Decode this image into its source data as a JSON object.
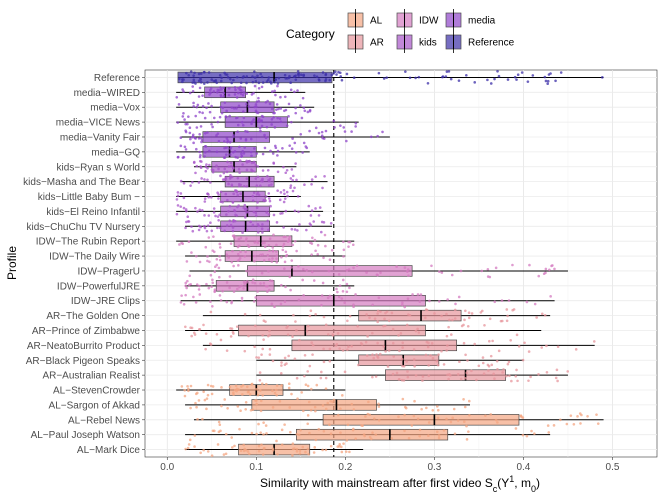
{
  "chart_data": {
    "type": "boxplot",
    "xlabel": "Similarity with mainstream after first video S",
    "xlabel_sub": "c",
    "xlabel_rest": "(Y",
    "xlabel_sup": "1",
    "xlabel_end": ", m",
    "xlabel_sub2": "0",
    "xlabel_close": ")",
    "ylabel": "Profile",
    "xlim": [
      -0.025,
      0.55
    ],
    "xticks": [
      0.0,
      0.1,
      0.2,
      0.3,
      0.4,
      0.5
    ],
    "xtick_labels": [
      "0.0",
      "0.1",
      "0.2",
      "0.3",
      "0.4",
      "0.5"
    ],
    "reference_line": 0.187,
    "legend": {
      "title": "Category",
      "entries": [
        {
          "label": "AL",
          "color": "#f4a582"
        },
        {
          "label": "AR",
          "color": "#e7969c"
        },
        {
          "label": "IDW",
          "color": "#d47bc0"
        },
        {
          "label": "kids",
          "color": "#a855c9"
        },
        {
          "label": "media",
          "color": "#8e44c9"
        },
        {
          "label": "Reference",
          "color": "#3c2fa8"
        }
      ]
    },
    "categories_top_to_bottom": [
      {
        "profile": "Reference",
        "category": "Reference",
        "min": 0.012,
        "q1": 0.012,
        "median": 0.12,
        "q3": 0.185,
        "max": 0.49
      },
      {
        "profile": "media−WIRED",
        "category": "media",
        "min": 0.01,
        "q1": 0.042,
        "median": 0.065,
        "q3": 0.088,
        "max": 0.155
      },
      {
        "profile": "media−Vox",
        "category": "media",
        "min": 0.01,
        "q1": 0.06,
        "median": 0.09,
        "q3": 0.12,
        "max": 0.165
      },
      {
        "profile": "media−VICE News",
        "category": "media",
        "min": 0.01,
        "q1": 0.065,
        "median": 0.1,
        "q3": 0.135,
        "max": 0.215
      },
      {
        "profile": "media−Vanity Fair",
        "category": "media",
        "min": 0.015,
        "q1": 0.04,
        "median": 0.075,
        "q3": 0.115,
        "max": 0.25
      },
      {
        "profile": "media−GQ",
        "category": "media",
        "min": 0.01,
        "q1": 0.04,
        "median": 0.07,
        "q3": 0.1,
        "max": 0.16
      },
      {
        "profile": "kids−Ryan s World",
        "category": "kids",
        "min": 0.03,
        "q1": 0.05,
        "median": 0.075,
        "q3": 0.1,
        "max": 0.145
      },
      {
        "profile": "kids−Masha and The Bear",
        "category": "kids",
        "min": 0.015,
        "q1": 0.065,
        "median": 0.092,
        "q3": 0.12,
        "max": 0.18
      },
      {
        "profile": "kids−Little Baby Bum −",
        "category": "kids",
        "min": 0.01,
        "q1": 0.06,
        "median": 0.085,
        "q3": 0.11,
        "max": 0.15
      },
      {
        "profile": "kids−El Reino Infantil",
        "category": "kids",
        "min": 0.01,
        "q1": 0.06,
        "median": 0.09,
        "q3": 0.115,
        "max": 0.175
      },
      {
        "profile": "kids−ChuChu TV Nursery",
        "category": "kids",
        "min": 0.02,
        "q1": 0.06,
        "median": 0.088,
        "q3": 0.115,
        "max": 0.185
      },
      {
        "profile": "IDW−The Rubin Report",
        "category": "IDW",
        "min": 0.01,
        "q1": 0.075,
        "median": 0.105,
        "q3": 0.14,
        "max": 0.21
      },
      {
        "profile": "IDW−The Daily Wire",
        "category": "IDW",
        "min": 0.02,
        "q1": 0.065,
        "median": 0.095,
        "q3": 0.125,
        "max": 0.2
      },
      {
        "profile": "IDW−PragerU",
        "category": "IDW",
        "min": 0.025,
        "q1": 0.09,
        "median": 0.14,
        "q3": 0.275,
        "max": 0.45
      },
      {
        "profile": "IDW−PowerfulJRE",
        "category": "IDW",
        "min": 0.02,
        "q1": 0.055,
        "median": 0.09,
        "q3": 0.12,
        "max": 0.21
      },
      {
        "profile": "IDW−JRE Clips",
        "category": "IDW",
        "min": 0.015,
        "q1": 0.1,
        "median": 0.187,
        "q3": 0.29,
        "max": 0.435
      },
      {
        "profile": "AR−The Golden One",
        "category": "AR",
        "min": 0.04,
        "q1": 0.215,
        "median": 0.285,
        "q3": 0.33,
        "max": 0.43
      },
      {
        "profile": "AR−Prince of Zimbabwe",
        "category": "AR",
        "min": 0.02,
        "q1": 0.08,
        "median": 0.155,
        "q3": 0.29,
        "max": 0.42
      },
      {
        "profile": "AR−NeatoBurrito Product",
        "category": "AR",
        "min": 0.04,
        "q1": 0.14,
        "median": 0.245,
        "q3": 0.325,
        "max": 0.48
      },
      {
        "profile": "AR−Black Pigeon Speaks",
        "category": "AR",
        "min": 0.1,
        "q1": 0.215,
        "median": 0.265,
        "q3": 0.305,
        "max": 0.4
      },
      {
        "profile": "AR−Australian Realist",
        "category": "AR",
        "min": 0.1,
        "q1": 0.245,
        "median": 0.335,
        "q3": 0.38,
        "max": 0.45
      },
      {
        "profile": "AL−StevenCrowder",
        "category": "AL",
        "min": 0.01,
        "q1": 0.07,
        "median": 0.1,
        "q3": 0.13,
        "max": 0.2
      },
      {
        "profile": "AL−Sargon of Akkad",
        "category": "AL",
        "min": 0.02,
        "q1": 0.095,
        "median": 0.19,
        "q3": 0.235,
        "max": 0.34
      },
      {
        "profile": "AL−Rebel News",
        "category": "AL",
        "min": 0.03,
        "q1": 0.175,
        "median": 0.3,
        "q3": 0.395,
        "max": 0.49
      },
      {
        "profile": "AL−Paul Joseph Watson",
        "category": "AL",
        "min": 0.02,
        "q1": 0.145,
        "median": 0.25,
        "q3": 0.315,
        "max": 0.43
      },
      {
        "profile": "AL−Mark Dice",
        "category": "AL",
        "min": 0.02,
        "q1": 0.08,
        "median": 0.12,
        "q3": 0.16,
        "max": 0.22
      }
    ]
  }
}
